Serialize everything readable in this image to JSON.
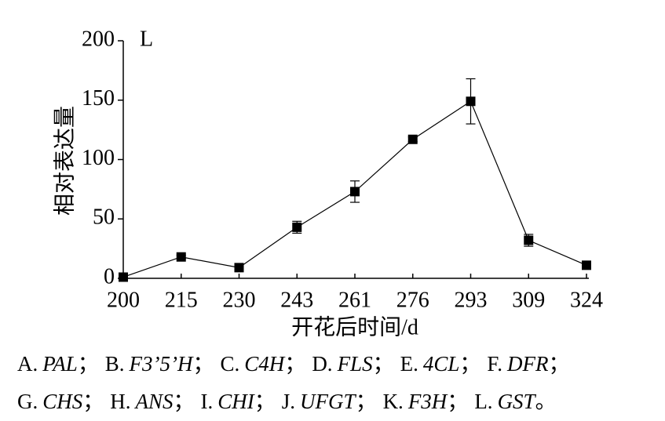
{
  "chart_data": {
    "type": "line",
    "panel_label": "L",
    "y_label": "相对表达量",
    "x_label": "开花后时间/d",
    "categories": [
      "200",
      "215",
      "230",
      "243",
      "261",
      "276",
      "293",
      "309",
      "324"
    ],
    "values": [
      1,
      18,
      9,
      43,
      73,
      117,
      149,
      32,
      11
    ],
    "errors": [
      0.5,
      1.5,
      1.5,
      5,
      9,
      2,
      19,
      5,
      1.5
    ],
    "color": "#000000",
    "ylim": [
      0,
      200
    ],
    "yticks": [
      0,
      50,
      100,
      150,
      200
    ]
  },
  "caption": [
    [
      {
        "letter": "A.",
        "gene": "PAL",
        "sep": "；"
      },
      {
        "letter": "B.",
        "gene": "F3’5’H",
        "sep": "；"
      },
      {
        "letter": "C.",
        "gene": "C4H",
        "sep": "；"
      },
      {
        "letter": "D.",
        "gene": "FLS",
        "sep": "；"
      },
      {
        "letter": "E.",
        "gene": "4CL",
        "sep": "；"
      },
      {
        "letter": "F.",
        "gene": "DFR",
        "sep": "；"
      }
    ],
    [
      {
        "letter": "G.",
        "gene": "CHS",
        "sep": "；"
      },
      {
        "letter": "H.",
        "gene": "ANS",
        "sep": "；"
      },
      {
        "letter": "I.",
        "gene": "CHI",
        "sep": "；"
      },
      {
        "letter": "J.",
        "gene": "UFGT",
        "sep": "；"
      },
      {
        "letter": "K.",
        "gene": "F3H",
        "sep": "；"
      },
      {
        "letter": "L.",
        "gene": "GST",
        "sep": "。"
      }
    ]
  ]
}
